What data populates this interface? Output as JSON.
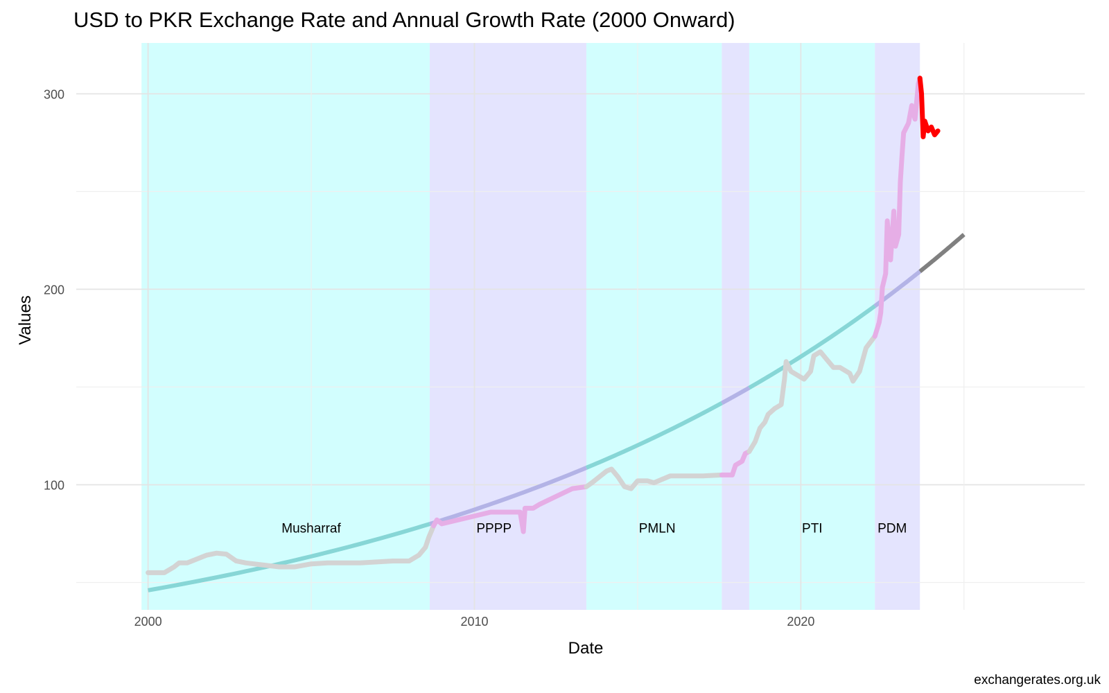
{
  "chart_data": {
    "type": "line",
    "title": "USD to PKR Exchange Rate and Annual Growth Rate (2000 Onward)",
    "xlabel": "Date",
    "ylabel": "Values",
    "caption": "exchangerates.org.uk",
    "x_ticks": [
      2000,
      2010,
      2020
    ],
    "y_ticks": [
      100,
      200,
      300
    ],
    "xlim": [
      1997.8,
      2028.7
    ],
    "ylim": [
      36,
      326
    ],
    "grid": true,
    "eras": [
      {
        "label": "Musharraf",
        "start": 1999.8,
        "end": 2008.63,
        "color": "#d2fefe"
      },
      {
        "label": "PPPP",
        "start": 2008.63,
        "end": 2013.43,
        "color": "#e4e4fe"
      },
      {
        "label": "PMLN",
        "start": 2013.43,
        "end": 2017.58,
        "color": "#d2fefe"
      },
      {
        "label": "",
        "start": 2017.58,
        "end": 2018.42,
        "color": "#e4e4fe"
      },
      {
        "label": "PTI",
        "start": 2018.42,
        "end": 2022.27,
        "color": "#d2fefe"
      },
      {
        "label": "PDM",
        "start": 2022.27,
        "end": 2023.65,
        "color": "#e4e4fe"
      }
    ],
    "era_label_positions": [
      {
        "label": "Musharraf",
        "x": 2005.0
      },
      {
        "label": "PPPP",
        "x": 2010.6
      },
      {
        "label": "PMLN",
        "x": 2015.6
      },
      {
        "label": "PTI",
        "x": 2020.35
      },
      {
        "label": "PDM",
        "x": 2022.8
      }
    ],
    "era_label_y": 78,
    "series": [
      {
        "role": "exchange_rate",
        "colors": {
          "Musharraf": "#d3d3d3",
          "PPPP": "#e6aee6",
          "PMLN": "#d3d3d3",
          "caretaker": "#e6aee6",
          "PTI": "#d3d3d3",
          "PDM": "#e6aee6",
          "after": "#ff0000"
        },
        "points": [
          [
            2000.0,
            55
          ],
          [
            2000.5,
            55
          ],
          [
            2000.8,
            58
          ],
          [
            2000.95,
            60
          ],
          [
            2001.2,
            60
          ],
          [
            2001.5,
            62
          ],
          [
            2001.8,
            64
          ],
          [
            2002.1,
            65
          ],
          [
            2002.4,
            64.5
          ],
          [
            2002.7,
            61
          ],
          [
            2003.0,
            60
          ],
          [
            2003.5,
            59
          ],
          [
            2004.0,
            58
          ],
          [
            2004.5,
            58
          ],
          [
            2005.0,
            59.5
          ],
          [
            2005.5,
            60
          ],
          [
            2006.0,
            60
          ],
          [
            2006.5,
            60
          ],
          [
            2007.0,
            60.5
          ],
          [
            2007.5,
            61
          ],
          [
            2008.0,
            61
          ],
          [
            2008.3,
            64
          ],
          [
            2008.5,
            68
          ],
          [
            2008.6,
            73
          ],
          [
            2008.75,
            79
          ],
          [
            2008.85,
            82
          ],
          [
            2009.0,
            80
          ],
          [
            2009.5,
            82
          ],
          [
            2010.0,
            84
          ],
          [
            2010.5,
            86
          ],
          [
            2011.0,
            86
          ],
          [
            2011.4,
            86
          ],
          [
            2011.5,
            76
          ],
          [
            2011.55,
            88
          ],
          [
            2011.8,
            88
          ],
          [
            2012.0,
            90
          ],
          [
            2012.5,
            94
          ],
          [
            2013.0,
            98
          ],
          [
            2013.43,
            99
          ],
          [
            2013.6,
            101
          ],
          [
            2013.9,
            105
          ],
          [
            2014.05,
            107
          ],
          [
            2014.2,
            108
          ],
          [
            2014.4,
            104
          ],
          [
            2014.6,
            99
          ],
          [
            2014.8,
            98
          ],
          [
            2015.0,
            102
          ],
          [
            2015.3,
            102
          ],
          [
            2015.5,
            101
          ],
          [
            2016.0,
            104.5
          ],
          [
            2016.5,
            104.5
          ],
          [
            2017.0,
            104.5
          ],
          [
            2017.58,
            105
          ],
          [
            2017.9,
            105
          ],
          [
            2018.0,
            110
          ],
          [
            2018.2,
            112
          ],
          [
            2018.3,
            116
          ],
          [
            2018.42,
            117
          ],
          [
            2018.6,
            122
          ],
          [
            2018.75,
            129
          ],
          [
            2018.9,
            132
          ],
          [
            2019.0,
            136
          ],
          [
            2019.2,
            139
          ],
          [
            2019.4,
            141
          ],
          [
            2019.5,
            154
          ],
          [
            2019.55,
            163
          ],
          [
            2019.7,
            158
          ],
          [
            2019.9,
            156
          ],
          [
            2020.1,
            154
          ],
          [
            2020.3,
            158
          ],
          [
            2020.4,
            166
          ],
          [
            2020.6,
            168
          ],
          [
            2020.8,
            164
          ],
          [
            2021.0,
            160
          ],
          [
            2021.2,
            160
          ],
          [
            2021.5,
            157
          ],
          [
            2021.6,
            153
          ],
          [
            2021.8,
            158
          ],
          [
            2022.0,
            170
          ],
          [
            2022.27,
            176
          ],
          [
            2022.4,
            183
          ],
          [
            2022.45,
            188
          ],
          [
            2022.5,
            201
          ],
          [
            2022.6,
            208
          ],
          [
            2022.65,
            235
          ],
          [
            2022.75,
            215
          ],
          [
            2022.85,
            240
          ],
          [
            2022.9,
            222
          ],
          [
            2023.0,
            228
          ],
          [
            2023.05,
            255
          ],
          [
            2023.1,
            268
          ],
          [
            2023.15,
            280
          ],
          [
            2023.3,
            285
          ],
          [
            2023.4,
            294
          ],
          [
            2023.5,
            287
          ],
          [
            2023.6,
            305
          ],
          [
            2023.65,
            308
          ],
          [
            2023.7,
            300
          ],
          [
            2023.75,
            278
          ],
          [
            2023.8,
            286
          ],
          [
            2023.9,
            281
          ],
          [
            2024.0,
            283
          ],
          [
            2024.1,
            279
          ],
          [
            2024.2,
            281
          ]
        ]
      },
      {
        "role": "growth_trend",
        "colors": {
          "Musharraf": "#87d6d6",
          "PPPP": "#b3b3e6",
          "PMLN": "#87d6d6",
          "caretaker": "#b3b3e6",
          "PTI": "#87d6d6",
          "PDM": "#b3b3e6",
          "after": "#808080"
        },
        "start": {
          "x": 2000.0,
          "y": 46
        },
        "end": {
          "x": 2025.0,
          "y": 228
        }
      }
    ]
  }
}
